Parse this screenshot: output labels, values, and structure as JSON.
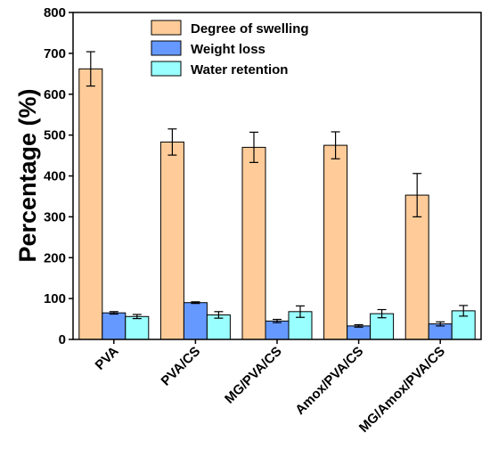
{
  "chart_data": {
    "type": "bar",
    "ylabel": "Percentage (%)",
    "xlabel": "",
    "ylim": [
      0,
      800
    ],
    "yticks": [
      0,
      100,
      200,
      300,
      400,
      500,
      600,
      700,
      800
    ],
    "categories": [
      "PVA",
      "PVA/CS",
      "MG/PVA/CS",
      "Amox/PVA/CS",
      "MG/Amox/PVA/CS"
    ],
    "series": [
      {
        "name": "Degree of swelling",
        "color": "#ffcc99",
        "values": [
          662,
          483,
          470,
          475,
          353
        ],
        "errors": [
          42,
          32,
          37,
          33,
          53
        ]
      },
      {
        "name": "Weight loss",
        "color": "#6699ff",
        "values": [
          65,
          90,
          45,
          33,
          38
        ],
        "errors": [
          3,
          2,
          4,
          3,
          5
        ]
      },
      {
        "name": "Water retention",
        "color": "#99ffff",
        "values": [
          56,
          60,
          68,
          63,
          70
        ],
        "errors": [
          5,
          8,
          14,
          10,
          13
        ]
      }
    ],
    "legend_position": "top-right",
    "grid": false
  }
}
